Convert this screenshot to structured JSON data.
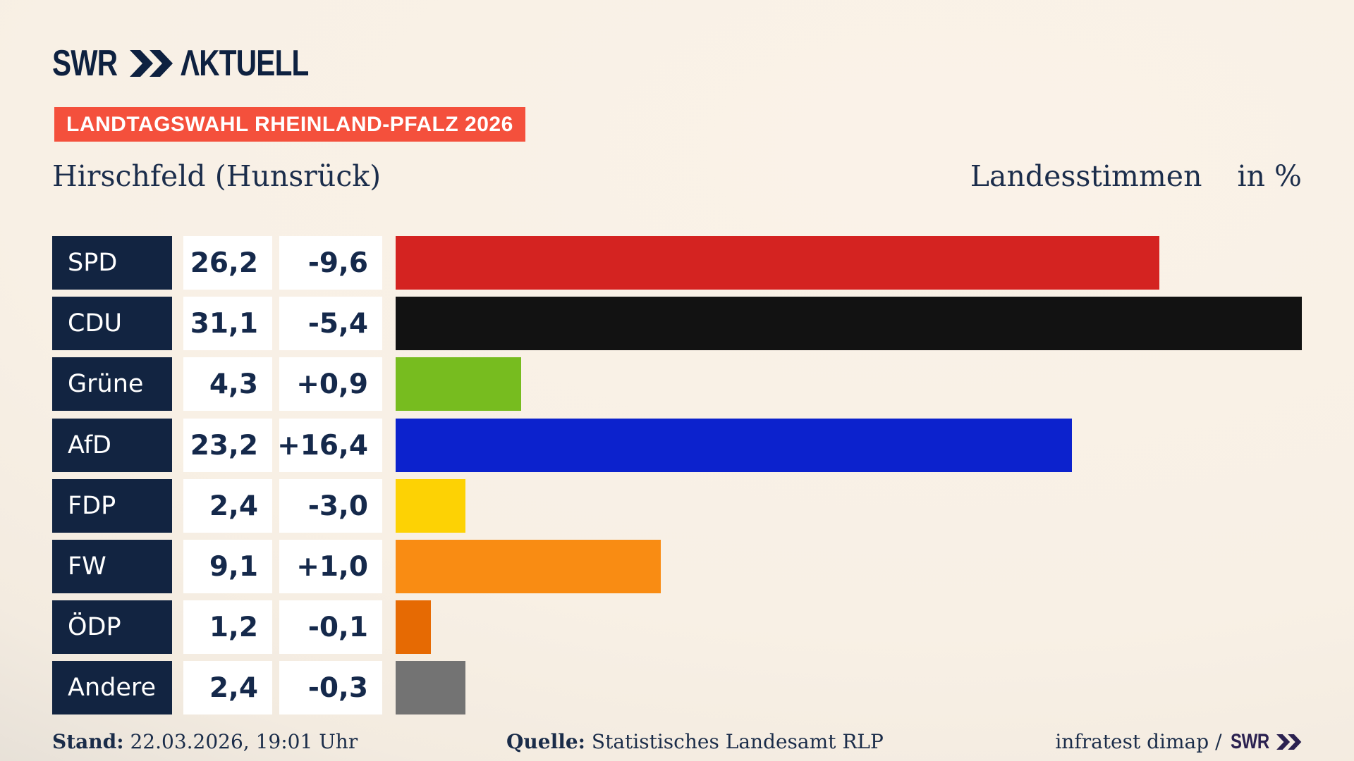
{
  "header": {
    "logo": {
      "swr": "SWR",
      "aktuell": "ΛKTUELL"
    },
    "banner": "LANDTAGSWAHL RHEINLAND-PFALZ 2026",
    "title": "Hirschfeld (Hunsrück)",
    "subtitle": "Landesstimmen",
    "unit": "in %"
  },
  "chart_data": {
    "type": "bar",
    "orientation": "horizontal",
    "title": "Landtagswahl Rheinland-Pfalz 2026 — Hirschfeld (Hunsrück), Landesstimmen in %",
    "unit": "%",
    "categories": [
      "SPD",
      "CDU",
      "Grüne",
      "AfD",
      "FDP",
      "FW",
      "ÖDP",
      "Andere"
    ],
    "values": [
      26.2,
      31.1,
      4.3,
      23.2,
      2.4,
      9.1,
      1.2,
      2.4
    ],
    "changes": [
      -9.6,
      -5.4,
      0.9,
      16.4,
      -3.0,
      1.0,
      -0.1,
      -0.3
    ],
    "value_labels": [
      "26,2",
      "31,1",
      "4,3",
      "23,2",
      "2,4",
      "9,1",
      "1,2",
      "2,4"
    ],
    "change_labels": [
      "-9,6",
      "-5,4",
      "+0,9",
      "+16,4",
      "-3,0",
      "+1,0",
      "-0,1",
      "-0,3"
    ],
    "bar_colors": [
      "#d42321",
      "#121212",
      "#77bc1f",
      "#0c22cd",
      "#fdd204",
      "#f98c13",
      "#e66a03",
      "#737373"
    ],
    "xlim": [
      0,
      31.1
    ],
    "grid": false,
    "legend": false
  },
  "footer": {
    "stand_label": "Stand:",
    "stand_value": " 22.03.2026, 19:01 Uhr",
    "quelle_label": "Quelle:",
    "quelle_value": " Statistisches Landesamt RLP",
    "credit_text": "infratest dimap /",
    "credit_logo": "SWR"
  },
  "colors": {
    "background_light": "#f9f1e6",
    "background_dark": "#b9b6b2",
    "banner_background": "#f4503c",
    "banner_text": "#ffffff",
    "logo_navy": "#0e2140",
    "label_cell_background": "#122441",
    "label_cell_text": "#ffffff",
    "number_cell_background": "#ffffff",
    "text_navy": "#1b2d4b",
    "credit_logo_color": "#2b2150"
  },
  "icons": {
    "logo_chevrons": "double-chevron-icon",
    "credit_chevrons": "double-chevron-icon"
  }
}
